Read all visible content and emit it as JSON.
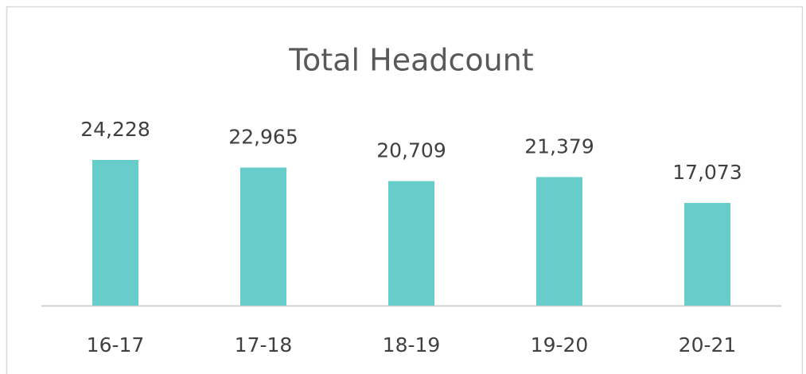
{
  "chart_data": {
    "type": "bar",
    "title": "Total Headcount",
    "categories": [
      "16-17",
      "17-18",
      "18-19",
      "19-20",
      "20-21"
    ],
    "values": [
      24228,
      22965,
      20709,
      21379,
      17073
    ],
    "value_labels": [
      "24,228",
      "22,965",
      "20,709",
      "21,379",
      "17,073"
    ],
    "color": "#66cdca"
  }
}
